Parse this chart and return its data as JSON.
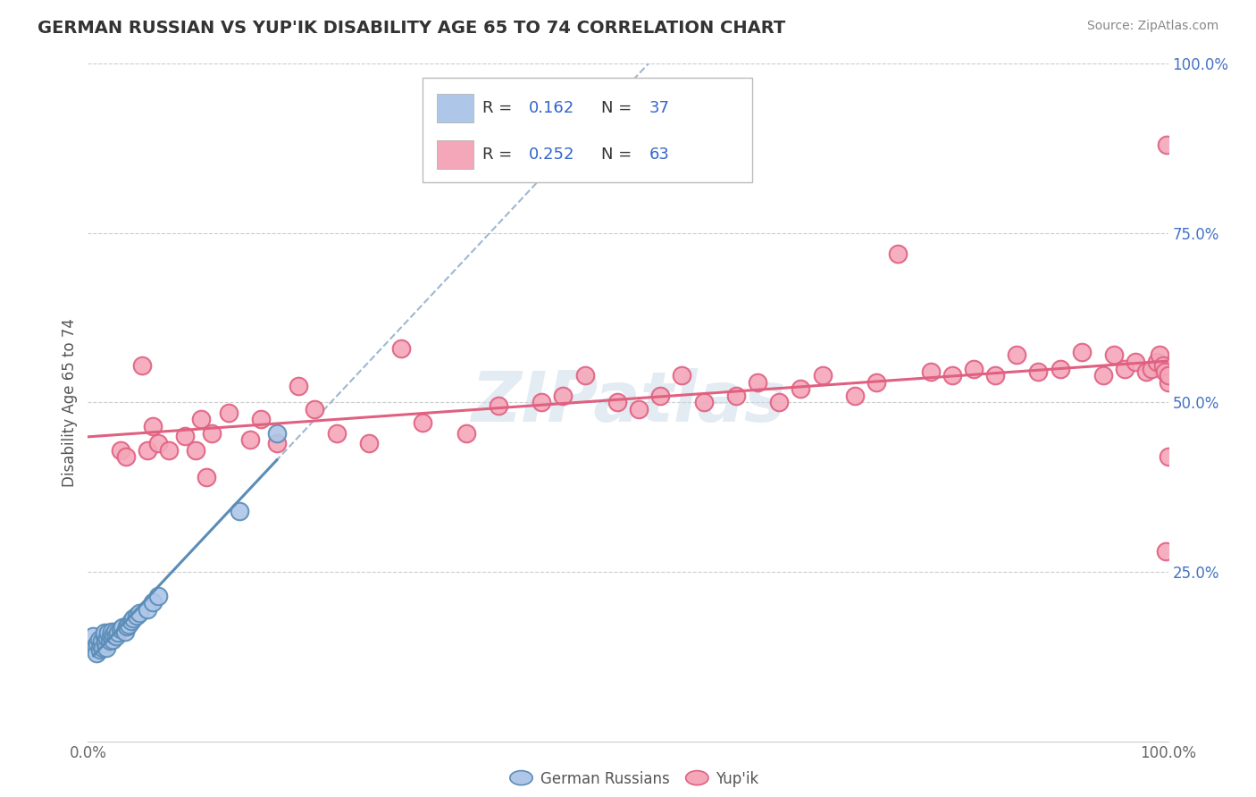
{
  "title": "GERMAN RUSSIAN VS YUP'IK DISABILITY AGE 65 TO 74 CORRELATION CHART",
  "source": "Source: ZipAtlas.com",
  "ylabel": "Disability Age 65 to 74",
  "xmin": 0.0,
  "xmax": 1.0,
  "ymin": 0.0,
  "ymax": 1.0,
  "color_blue": "#AEC6E8",
  "color_pink": "#F4A7B9",
  "line_blue": "#5B8DB8",
  "line_pink": "#E06080",
  "line_dashed_color": "#A0B8D0",
  "watermark_color": "#C8D8E8",
  "legend_R1": "R = 0.162",
  "legend_N1": "N = 37",
  "legend_R2": "R = 0.252",
  "legend_N2": "N = 63",
  "ytick_color": "#4472C4",
  "xtick_color": "#666666",
  "german_russian_x": [
    0.005,
    0.007,
    0.008,
    0.009,
    0.01,
    0.011,
    0.012,
    0.013,
    0.014,
    0.015,
    0.015,
    0.016,
    0.017,
    0.018,
    0.019,
    0.02,
    0.021,
    0.022,
    0.023,
    0.024,
    0.025,
    0.026,
    0.028,
    0.03,
    0.032,
    0.034,
    0.036,
    0.038,
    0.04,
    0.042,
    0.045,
    0.048,
    0.055,
    0.06,
    0.065,
    0.14,
    0.175
  ],
  "german_russian_y": [
    0.155,
    0.14,
    0.13,
    0.145,
    0.15,
    0.135,
    0.142,
    0.148,
    0.138,
    0.155,
    0.16,
    0.145,
    0.138,
    0.152,
    0.16,
    0.148,
    0.155,
    0.162,
    0.15,
    0.158,
    0.162,
    0.155,
    0.16,
    0.165,
    0.168,
    0.162,
    0.17,
    0.172,
    0.178,
    0.182,
    0.185,
    0.19,
    0.195,
    0.205,
    0.215,
    0.34,
    0.455
  ],
  "yupik_x": [
    0.03,
    0.035,
    0.05,
    0.055,
    0.06,
    0.065,
    0.075,
    0.09,
    0.1,
    0.105,
    0.11,
    0.115,
    0.13,
    0.15,
    0.16,
    0.175,
    0.195,
    0.21,
    0.23,
    0.26,
    0.29,
    0.31,
    0.35,
    0.38,
    0.42,
    0.44,
    0.46,
    0.49,
    0.51,
    0.53,
    0.55,
    0.57,
    0.6,
    0.62,
    0.64,
    0.66,
    0.68,
    0.71,
    0.73,
    0.75,
    0.78,
    0.8,
    0.82,
    0.84,
    0.86,
    0.88,
    0.9,
    0.92,
    0.94,
    0.95,
    0.96,
    0.97,
    0.98,
    0.985,
    0.99,
    0.992,
    0.995,
    0.997,
    0.998,
    0.999,
    1.0,
    1.0,
    1.0
  ],
  "yupik_y": [
    0.43,
    0.42,
    0.555,
    0.43,
    0.465,
    0.44,
    0.43,
    0.45,
    0.43,
    0.475,
    0.39,
    0.455,
    0.485,
    0.445,
    0.475,
    0.44,
    0.525,
    0.49,
    0.455,
    0.44,
    0.58,
    0.47,
    0.455,
    0.495,
    0.5,
    0.51,
    0.54,
    0.5,
    0.49,
    0.51,
    0.54,
    0.5,
    0.51,
    0.53,
    0.5,
    0.52,
    0.54,
    0.51,
    0.53,
    0.72,
    0.545,
    0.54,
    0.55,
    0.54,
    0.57,
    0.545,
    0.55,
    0.575,
    0.54,
    0.57,
    0.55,
    0.56,
    0.545,
    0.55,
    0.56,
    0.57,
    0.555,
    0.545,
    0.28,
    0.88,
    0.53,
    0.42,
    0.54
  ]
}
